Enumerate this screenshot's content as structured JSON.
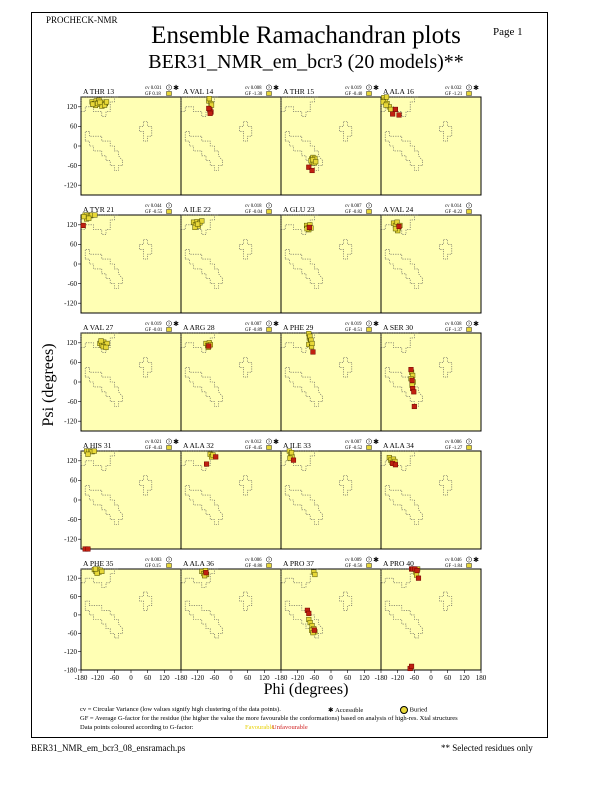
{
  "header": {
    "program": "PROCHECK-NMR",
    "page_label": "Page  1",
    "title": "Ensemble Ramachandran plots",
    "subtitle": "BER31_NMR_em_bcr3 (20 models)**"
  },
  "colors": {
    "plot_background": "#ffffb4",
    "favourable_point": "#e8d838",
    "unfavourable_point": "#c02010",
    "point_border": "#505000",
    "region_outline": "#555555"
  },
  "chart_data": {
    "type": "scatter",
    "xlabel": "Phi (degrees)",
    "ylabel": "Psi (degrees)",
    "xlim": [
      -180,
      180
    ],
    "ylim": [
      -180,
      180
    ],
    "x_ticks": [
      "-180",
      "-120",
      "-60",
      "0",
      "60",
      "120",
      "180"
    ],
    "y_ticks": [
      "120",
      "60",
      "0",
      "-60",
      "-120"
    ],
    "y_ticks_bottom_row": [
      "120",
      "60",
      "0",
      "-60",
      "-120",
      "-180"
    ],
    "rows": 5,
    "cols": 4,
    "panels": [
      {
        "residue": "A THR 13",
        "cv": "cv 0.031",
        "gf": "GF 0.18",
        "surface": "?",
        "star": true,
        "points": [
          [
            -140,
            135
          ],
          [
            -132,
            130
          ],
          [
            -125,
            138
          ],
          [
            -118,
            132
          ],
          [
            -110,
            128
          ],
          [
            -100,
            134
          ],
          [
            -92,
            130
          ],
          [
            -128,
            124
          ],
          [
            -115,
            140
          ],
          [
            -105,
            122
          ],
          [
            -138,
            128
          ],
          [
            -120,
            130
          ],
          [
            -95,
            125
          ],
          [
            -88,
            135
          ],
          [
            -112,
            134
          ]
        ],
        "bad": []
      },
      {
        "residue": "A VAL 14",
        "cv": "cv 0.008",
        "gf": "GF -1.30",
        "surface": "?",
        "star": true,
        "points": [
          [
            -80,
            138
          ],
          [
            -72,
            130
          ],
          [
            -78,
            145
          ],
          [
            -70,
            125
          ]
        ],
        "bad": [
          [
            -76,
            110
          ],
          [
            -72,
            104
          ],
          [
            -80,
            115
          ],
          [
            -75,
            100
          ]
        ]
      },
      {
        "residue": "A THR 15",
        "cv": "cv 0.019",
        "gf": "GF -0.40",
        "surface": "?",
        "star": true,
        "points": [
          [
            -70,
            -40
          ],
          [
            -65,
            -35
          ],
          [
            -62,
            -45
          ],
          [
            -58,
            -38
          ],
          [
            -68,
            -50
          ],
          [
            -72,
            -45
          ],
          [
            -60,
            -52
          ],
          [
            -66,
            -42
          ],
          [
            -55,
            -48
          ]
        ],
        "bad": [
          [
            -80,
            -65
          ],
          [
            -68,
            -75
          ]
        ]
      },
      {
        "residue": "A ALA 16",
        "cv": "cv 0.032",
        "gf": "GF -1.21",
        "surface": "?",
        "star": true,
        "points": [
          [
            -170,
            148
          ],
          [
            -165,
            140
          ],
          [
            -160,
            152
          ],
          [
            -172,
            135
          ],
          [
            -158,
            130
          ],
          [
            -150,
            120
          ],
          [
            -162,
            125
          ],
          [
            -145,
            112
          ]
        ],
        "bad": [
          [
            -138,
            98
          ],
          [
            -128,
            112
          ],
          [
            -115,
            95
          ]
        ]
      },
      {
        "residue": "A TYR 21",
        "cv": "cv 0.044",
        "gf": "GF -0.55",
        "surface": "?",
        "star": false,
        "points": [
          [
            -165,
            158
          ],
          [
            -158,
            150
          ],
          [
            -150,
            162
          ],
          [
            -145,
            148
          ],
          [
            -160,
            138
          ],
          [
            -140,
            155
          ],
          [
            -130,
            150
          ],
          [
            -170,
            145
          ],
          [
            -152,
            140
          ]
        ],
        "bad": [
          [
            -172,
            118
          ]
        ]
      },
      {
        "residue": "A ILE 22",
        "cv": "cv 0.018",
        "gf": "GF -0.04",
        "surface": "?",
        "star": false,
        "points": [
          [
            -135,
            128
          ],
          [
            -128,
            120
          ],
          [
            -122,
            130
          ],
          [
            -118,
            116
          ],
          [
            -112,
            126
          ],
          [
            -105,
            132
          ],
          [
            -130,
            112
          ],
          [
            -120,
            122
          ]
        ],
        "bad": []
      },
      {
        "residue": "A GLU 23",
        "cv": "cv 0.007",
        "gf": "GF -0.82",
        "surface": "?",
        "star": false,
        "points": [
          [
            -88,
            118
          ],
          [
            -82,
            112
          ],
          [
            -76,
            120
          ],
          [
            -80,
            105
          ],
          [
            -72,
            110
          ],
          [
            -86,
            108
          ]
        ],
        "bad": [
          [
            -78,
            112
          ]
        ]
      },
      {
        "residue": "A VAL 24",
        "cv": "cv 0.014",
        "gf": "GF -0.22",
        "surface": "?",
        "star": false,
        "points": [
          [
            -135,
            125
          ],
          [
            -128,
            118
          ],
          [
            -122,
            128
          ],
          [
            -118,
            110
          ],
          [
            -112,
            118
          ],
          [
            -120,
            102
          ],
          [
            -128,
            108
          ]
        ],
        "bad": [
          [
            -115,
            115
          ]
        ]
      },
      {
        "residue": "A VAL 27",
        "cv": "cv 0.019",
        "gf": "GF -0.01",
        "surface": "?",
        "star": true,
        "points": [
          [
            -112,
            118
          ],
          [
            -105,
            112
          ],
          [
            -98,
            122
          ],
          [
            -92,
            114
          ],
          [
            -86,
            118
          ],
          [
            -100,
            108
          ],
          [
            -108,
            126
          ],
          [
            -90,
            106
          ]
        ],
        "bad": []
      },
      {
        "residue": "A ARG 28",
        "cv": "cv 0.007",
        "gf": "GF -0.89",
        "surface": "?",
        "star": true,
        "points": [
          [
            -90,
            118
          ],
          [
            -84,
            112
          ],
          [
            -78,
            120
          ],
          [
            -82,
            106
          ],
          [
            -74,
            114
          ]
        ],
        "bad": [
          [
            -80,
            110
          ]
        ]
      },
      {
        "residue": "A PHE 29",
        "cv": "cv 0.019",
        "gf": "GF -0.51",
        "surface": "?",
        "star": true,
        "points": [
          [
            -80,
            148
          ],
          [
            -78,
            135
          ],
          [
            -74,
            125
          ],
          [
            -80,
            115
          ],
          [
            -70,
            108
          ],
          [
            -76,
            140
          ],
          [
            -72,
            128
          ],
          [
            -68,
            118
          ]
        ],
        "bad": [
          [
            -65,
            92
          ]
        ]
      },
      {
        "residue": "A SER 30",
        "cv": "cv 0.038",
        "gf": "GF -1.37",
        "surface": "?",
        "star": true,
        "points": [
          [
            -70,
            30
          ],
          [
            -66,
            20
          ],
          [
            -72,
            10
          ],
          [
            -64,
            0
          ],
          [
            -68,
            -10
          ]
        ],
        "bad": [
          [
            -72,
            38
          ],
          [
            -66,
            -20
          ],
          [
            -62,
            -30
          ],
          [
            -68,
            5
          ],
          [
            -60,
            -75
          ]
        ]
      },
      {
        "residue": "A HIS 31",
        "cv": "cv 0.021",
        "gf": "GF -0.43",
        "surface": "?",
        "star": true,
        "points": [
          [
            -160,
            158
          ],
          [
            -152,
            150
          ],
          [
            -145,
            162
          ],
          [
            -140,
            148
          ],
          [
            -155,
            140
          ],
          [
            -132,
            155
          ]
        ],
        "bad": [
          [
            -165,
            -172
          ],
          [
            -155,
            -168
          ]
        ]
      },
      {
        "residue": "A ALA 32",
        "cv": "cv 0.012",
        "gf": "GF -0.45",
        "surface": "?",
        "star": true,
        "points": [
          [
            -75,
            140
          ],
          [
            -70,
            132
          ],
          [
            -65,
            138
          ]
        ],
        "bad": [
          [
            -88,
            110
          ],
          [
            -55,
            132
          ]
        ]
      },
      {
        "residue": "A ILE 33",
        "cv": "cv 0.007",
        "gf": "GF -0.52",
        "surface": "?",
        "star": true,
        "points": [
          [
            -150,
            150
          ],
          [
            -145,
            140
          ],
          [
            -140,
            132
          ],
          [
            -148,
            128
          ],
          [
            -142,
            145
          ]
        ],
        "bad": [
          [
            -135,
            122
          ]
        ]
      },
      {
        "residue": "A ALA 34",
        "cv": "cv 0.006",
        "gf": "GF -1.27",
        "surface": "?",
        "star": false,
        "points": [
          [
            -150,
            130
          ],
          [
            -145,
            122
          ],
          [
            -140,
            115
          ],
          [
            -135,
            125
          ],
          [
            -130,
            118
          ]
        ],
        "bad": [
          [
            -138,
            112
          ],
          [
            -128,
            108
          ]
        ]
      },
      {
        "residue": "A PHE 35",
        "cv": "cv 0.003",
        "gf": "GF 0.15",
        "surface": "?",
        "star": false,
        "points": [
          [
            -132,
            148
          ],
          [
            -126,
            142
          ],
          [
            -120,
            150
          ],
          [
            -115,
            140
          ],
          [
            -110,
            146
          ],
          [
            -122,
            136
          ],
          [
            -128,
            152
          ],
          [
            -105,
            142
          ]
        ],
        "bad": []
      },
      {
        "residue": "A ALA 36",
        "cv": "cv 0.006",
        "gf": "GF -0.86",
        "surface": "?",
        "star": false,
        "points": [
          [
            -105,
            142
          ],
          [
            -98,
            135
          ],
          [
            -92,
            145
          ],
          [
            -88,
            132
          ],
          [
            -95,
            128
          ]
        ],
        "bad": [
          [
            -90,
            138
          ]
        ]
      },
      {
        "residue": "A PRO 37",
        "cv": "cv 0.009",
        "gf": "GF -0.56",
        "surface": "?",
        "star": true,
        "points": [
          [
            -62,
            140
          ],
          [
            -58,
            132
          ],
          [
            -80,
            -15
          ],
          [
            -75,
            -25
          ],
          [
            -68,
            -35
          ],
          [
            -62,
            -45
          ],
          [
            -58,
            -55
          ],
          [
            -70,
            -50
          ],
          [
            -65,
            -58
          ]
        ],
        "bad": [
          [
            -85,
            15
          ],
          [
            -80,
            5
          ],
          [
            -60,
            -50
          ]
        ]
      },
      {
        "residue": "A PRO 40",
        "cv": "cv 0.046",
        "gf": "GF -1.84",
        "surface": "?",
        "star": true,
        "points": [
          [
            -65,
            158
          ],
          [
            -60,
            150
          ],
          [
            -55,
            140
          ],
          [
            -52,
            130
          ],
          [
            -48,
            165
          ]
        ],
        "bad": [
          [
            -70,
            165
          ],
          [
            -66,
            152
          ],
          [
            -58,
            158
          ],
          [
            -45,
            120
          ],
          [
            -50,
            145
          ],
          [
            -75,
            -175
          ],
          [
            -70,
            -168
          ]
        ]
      }
    ]
  },
  "axes": {
    "xlabel": "Phi (degrees)",
    "ylabel": "Psi (degrees)"
  },
  "legend": {
    "cv_line": "cv = Circular Variance (low values signify high clustering of the data points).",
    "accessible": "Accessible",
    "buried": "Buried",
    "gf_line": "GF = Average G-factor for the residue (the higher the value the more favourable the conformations) based on analysis of high-res. Xtal structures",
    "colour_line": "Data points coloured according to G-factor:",
    "favourable": "Favourable",
    "unfavourable": "Unfavourable"
  },
  "footer": {
    "filename": "BER31_NMR_em_bcr3_08_ensramach.ps",
    "selected_note": "** Selected residues only"
  }
}
